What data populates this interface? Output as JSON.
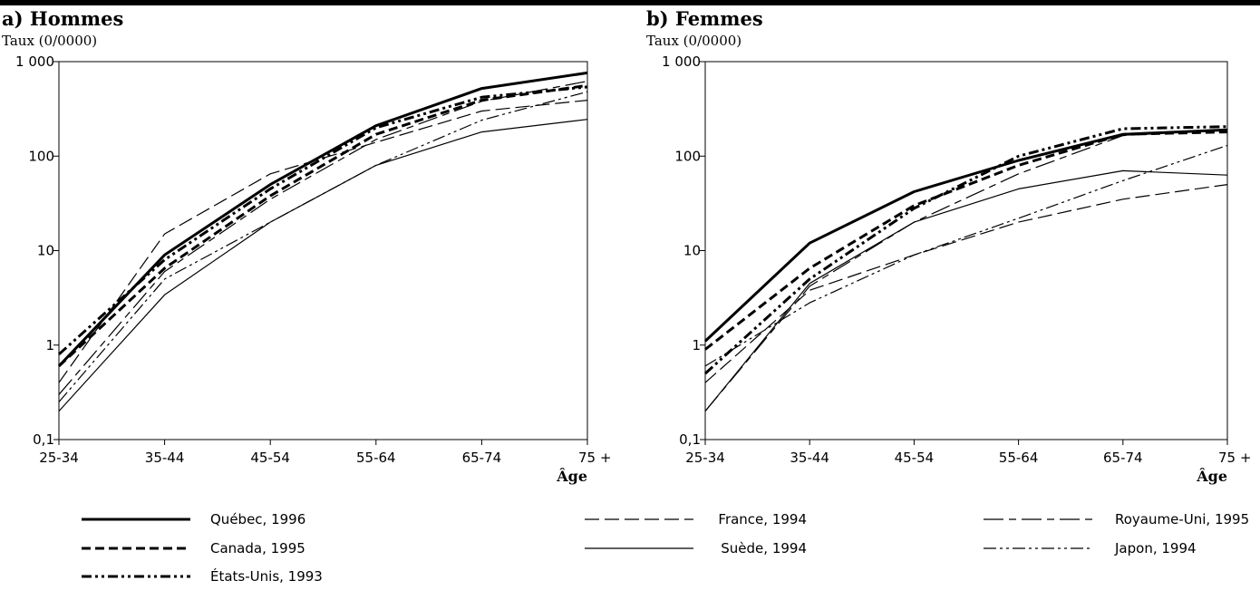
{
  "chart_data": [
    {
      "type": "line",
      "title": "a) Hommes",
      "ylabel": "Taux (0/0000)",
      "xlabel": "Âge",
      "scale": "log",
      "ylim": [
        0.1,
        1000
      ],
      "y_ticks": [
        {
          "value": 0.1,
          "label": "0,1"
        },
        {
          "value": 1,
          "label": "1"
        },
        {
          "value": 10,
          "label": "10"
        },
        {
          "value": 100,
          "label": "100"
        },
        {
          "value": 1000,
          "label": "1 000"
        }
      ],
      "categories": [
        "25-34",
        "35-44",
        "45-54",
        "55-64",
        "65-74",
        "75 +"
      ],
      "series": [
        {
          "name": "Québec, 1996",
          "values": [
            0.6,
            9,
            50,
            210,
            520,
            760
          ]
        },
        {
          "name": "Canada, 1995",
          "values": [
            0.6,
            6.5,
            38,
            170,
            390,
            560
          ]
        },
        {
          "name": "États-Unis, 1993",
          "values": [
            0.8,
            8,
            45,
            200,
            420,
            540
          ]
        },
        {
          "name": "France, 1994",
          "values": [
            0.4,
            15,
            65,
            140,
            300,
            390
          ]
        },
        {
          "name": "Suède, 1994",
          "values": [
            0.2,
            3.4,
            20,
            80,
            180,
            245
          ]
        },
        {
          "name": "Royaume-Uni, 1995",
          "values": [
            0.3,
            6,
            35,
            150,
            380,
            620
          ]
        },
        {
          "name": "Japon, 1994",
          "values": [
            0.25,
            5,
            20,
            80,
            240,
            480
          ]
        }
      ]
    },
    {
      "type": "line",
      "title": "b) Femmes",
      "ylabel": "Taux (0/0000)",
      "xlabel": "Âge",
      "scale": "log",
      "ylim": [
        0.1,
        1000
      ],
      "y_ticks": [
        {
          "value": 0.1,
          "label": "0,1"
        },
        {
          "value": 1,
          "label": "1"
        },
        {
          "value": 10,
          "label": "10"
        },
        {
          "value": 100,
          "label": "100"
        },
        {
          "value": 1000,
          "label": "1 000"
        }
      ],
      "categories": [
        "25-34",
        "35-44",
        "45-54",
        "55-64",
        "65-74",
        "75 +"
      ],
      "series": [
        {
          "name": "Québec, 1996",
          "values": [
            1.1,
            12,
            42,
            90,
            170,
            190
          ]
        },
        {
          "name": "Canada, 1995",
          "values": [
            0.9,
            6.5,
            30,
            80,
            170,
            180
          ]
        },
        {
          "name": "États-Unis, 1993",
          "values": [
            0.5,
            5,
            28,
            100,
            195,
            205
          ]
        },
        {
          "name": "France, 1994",
          "values": [
            0.4,
            3.8,
            9,
            20,
            35,
            50
          ]
        },
        {
          "name": "Suède, 1994",
          "values": [
            0.2,
            4.5,
            20,
            45,
            70,
            63
          ]
        },
        {
          "name": "Royaume-Uni, 1995",
          "values": [
            0.2,
            4.2,
            20,
            65,
            165,
            190
          ]
        },
        {
          "name": "Japon, 1994",
          "values": [
            0.6,
            2.8,
            9,
            22,
            55,
            130
          ]
        }
      ]
    }
  ],
  "legend": [
    {
      "label": "Québec, 1996",
      "style": "solid-thick"
    },
    {
      "label": "France, 1994",
      "style": "dash-long"
    },
    {
      "label": "Royaume-Uni, 1995",
      "style": "dash-double"
    },
    {
      "label": "Canada, 1995",
      "style": "dash-thick"
    },
    {
      "label": "Suède, 1994",
      "style": "solid-thin"
    },
    {
      "label": "Japon, 1994",
      "style": "dash-dot-dot-thin"
    },
    {
      "label": "États-Unis, 1993",
      "style": "dash-dot-dot-thick"
    }
  ]
}
